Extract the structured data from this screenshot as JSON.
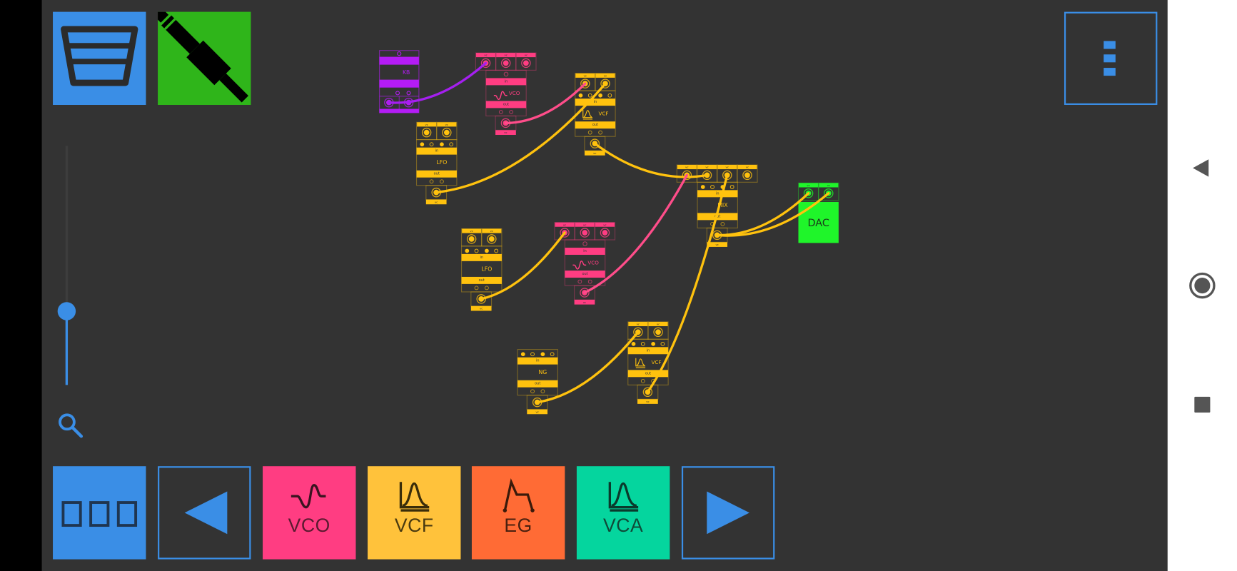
{
  "colors": {
    "background": "#333333",
    "accent": "#3a8ee6",
    "jack_button": "#2fb51a",
    "vco": "#ff3d82",
    "vcf": "#ffc23b",
    "eg": "#ff6b35",
    "vca": "#05d59e",
    "module_yellow": "#ffc20e",
    "module_pink": "#ff3d82",
    "module_purple": "#b41cf5",
    "dac": "#1ff52a"
  },
  "top_buttons": [
    {
      "name": "trash-button",
      "icon": "trash-icon"
    },
    {
      "name": "audio-jack-button",
      "icon": "audio-jack-icon"
    }
  ],
  "menu_button": {
    "icon": "more-vertical-icon"
  },
  "zoom": {
    "level_percent": 31,
    "icon": "search-icon"
  },
  "toolbar": {
    "modules_button": {
      "icon": "modules-icon"
    },
    "prev_button": {
      "icon": "triangle-left-icon"
    },
    "items": [
      {
        "label": "VCO",
        "icon": "sine-wave-icon",
        "color": "#ff3d82"
      },
      {
        "label": "VCF",
        "icon": "filter-curve-icon",
        "color": "#ffc23b"
      },
      {
        "label": "EG",
        "icon": "envelope-icon",
        "color": "#ff6b35"
      },
      {
        "label": "VCA",
        "icon": "amp-curve-icon",
        "color": "#05d59e"
      }
    ],
    "next_button": {
      "icon": "triangle-right-icon"
    }
  },
  "android_nav": [
    {
      "icon": "back-icon"
    },
    {
      "icon": "home-icon"
    },
    {
      "icon": "recents-icon"
    }
  ],
  "patch": {
    "port_label": "vc",
    "in_label": "in",
    "out_label": "out",
    "modules": [
      {
        "id": "kb",
        "label": "KB",
        "kind": "purple"
      },
      {
        "id": "vco1",
        "label": "VCO",
        "kind": "pink",
        "icon": "sine-wave-icon"
      },
      {
        "id": "vcf1",
        "label": "VCF",
        "kind": "yellow",
        "icon": "filter-curve-icon"
      },
      {
        "id": "lfo1",
        "label": "LFO",
        "kind": "yellow"
      },
      {
        "id": "mix",
        "label": "MIX",
        "kind": "yellow"
      },
      {
        "id": "dac",
        "label": "DAC",
        "kind": "green"
      },
      {
        "id": "lfo2",
        "label": "LFO",
        "kind": "yellow"
      },
      {
        "id": "vco2",
        "label": "VCO",
        "kind": "pink",
        "icon": "sine-wave-icon"
      },
      {
        "id": "ng",
        "label": "NG",
        "kind": "yellow"
      },
      {
        "id": "vcf2",
        "label": "VCF",
        "kind": "yellow",
        "icon": "filter-curve-icon"
      }
    ],
    "cables": [
      {
        "from": "kb.out0",
        "to": "vco1.in0",
        "color": "#a51ff0"
      },
      {
        "from": "vco1.out",
        "to": "vcf1.in0",
        "color": "#ff4d8a"
      },
      {
        "from": "lfo1.out",
        "to": "vcf1.in1",
        "color": "#ffc20e"
      },
      {
        "from": "vcf1.out",
        "to": "mix.in1",
        "color": "#ffc20e"
      },
      {
        "from": "vco2.out",
        "to": "mix.in0",
        "color": "#ff4d8a"
      },
      {
        "from": "vcf2.out",
        "to": "mix.in2",
        "color": "#ffc20e"
      },
      {
        "from": "mix.out",
        "to": "dac.in0",
        "color": "#ffc20e"
      },
      {
        "from": "mix.out",
        "to": "dac.in1",
        "color": "#ffc20e"
      },
      {
        "from": "lfo2.out",
        "to": "vco2.in0",
        "color": "#ffc20e"
      },
      {
        "from": "ng.out",
        "to": "vcf2.in0",
        "color": "#ffc20e"
      }
    ]
  }
}
